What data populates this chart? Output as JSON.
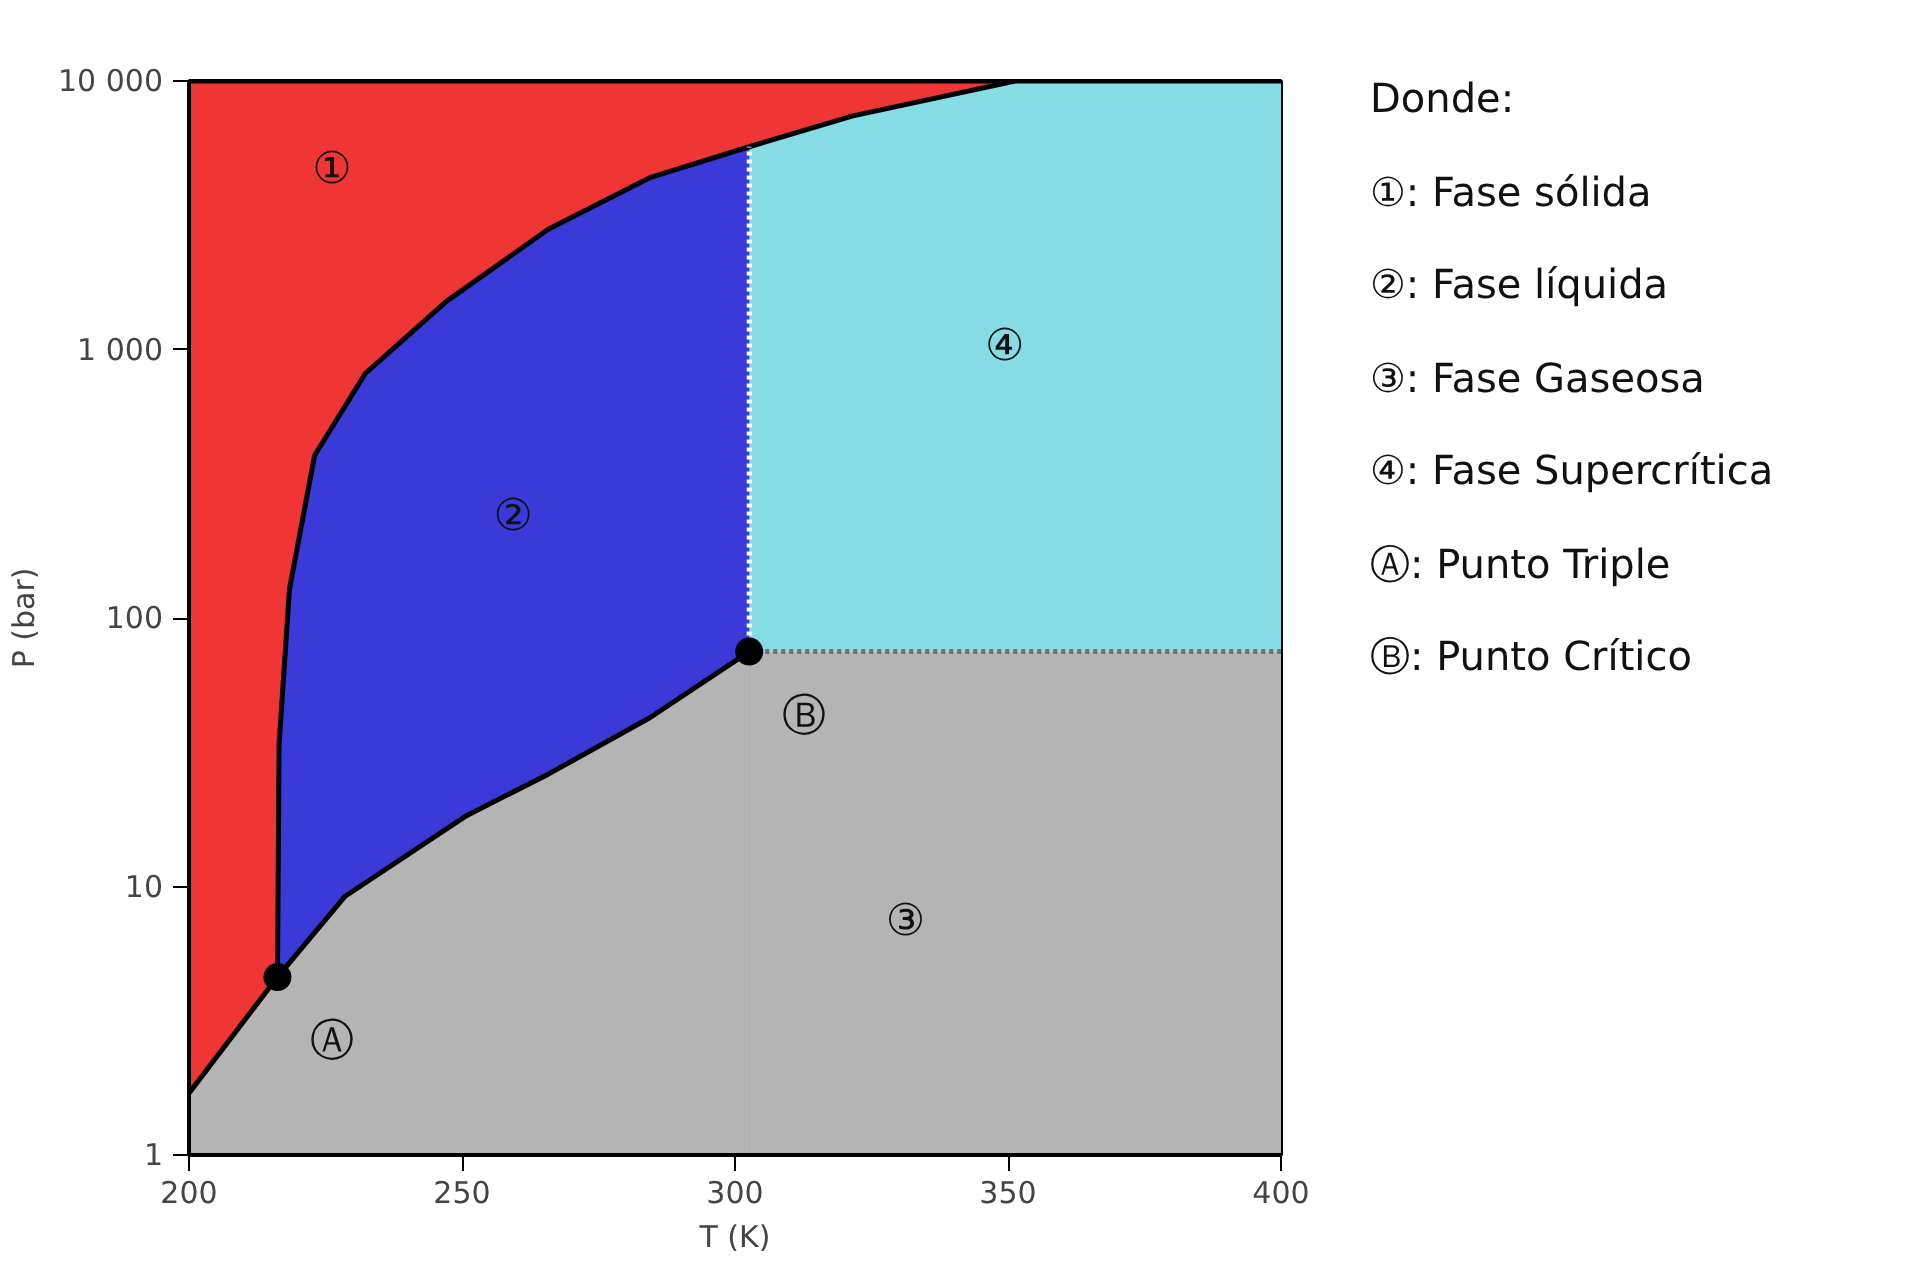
{
  "chart_data": {
    "type": "line",
    "xlabel": "T (K)",
    "ylabel": "P (bar)",
    "log": "y",
    "xlim": [
      200,
      400
    ],
    "xticks": [
      200,
      250,
      300,
      350,
      400
    ],
    "ylim": [
      1,
      10000
    ],
    "yticks": [
      1,
      10,
      100,
      {
        "value": 1000,
        "label": "1 000"
      },
      {
        "value": 10000,
        "label": "10 000"
      }
    ],
    "series": [
      {
        "type": "area",
        "name": "①",
        "color": "#f03535",
        "x": [
          200,
          351.3
        ],
        "values": [
          10000,
          10000
        ]
      },
      {
        "type": "area",
        "name": "④",
        "color": "#86dce5",
        "x": [
          302.6,
          321.6,
          351.3,
          400
        ],
        "values": [
          5690,
          7413,
          10000,
          10000
        ]
      },
      {
        "type": "area",
        "name": "②",
        "color": "#3a3ad8",
        "x": [
          216.2,
          216.5,
          218.4,
          223,
          232.3,
          247.2,
          265.8,
          284.4,
          302.6
        ],
        "values": [
          4.6,
          34,
          128,
          403,
          815,
          1514,
          2805,
          4365,
          5690
        ]
      },
      {
        "type": "area",
        "color": "#b4b4b4",
        "x": [
          200,
          216.2,
          228.6,
          250.9,
          265.8,
          284.4,
          302.6
        ],
        "values": [
          1.7,
          4.6,
          9.2,
          18.4,
          26.2,
          42.5,
          75
        ]
      },
      {
        "type": "area",
        "name": "③",
        "color": "#b4b4b4",
        "line_style": "dotted",
        "x": [
          302.6,
          400
        ],
        "values": [
          75,
          75
        ]
      },
      {
        "color": "#ffffff",
        "line_style": "dotted",
        "x": [
          302.6,
          302.6
        ],
        "values": [
          75,
          5690
        ]
      },
      {
        "type": "scatter",
        "name": "Ⓐ",
        "color": "#000000",
        "marker": "circle",
        "x": [
          216.2
        ],
        "values": [
          4.6
        ]
      },
      {
        "type": "scatter",
        "name": "Ⓑ",
        "color": "#000000",
        "marker": "circle",
        "x": [
          302.6
        ],
        "values": [
          75
        ]
      }
    ],
    "annotations": [
      "Donde:",
      "①: Fase sólida",
      "②: Fase líquida",
      "③: Fase Gaseosa",
      "④: Fase Supercrítica",
      "Ⓐ: Punto Triple",
      "Ⓑ: Punto Crítico"
    ]
  }
}
